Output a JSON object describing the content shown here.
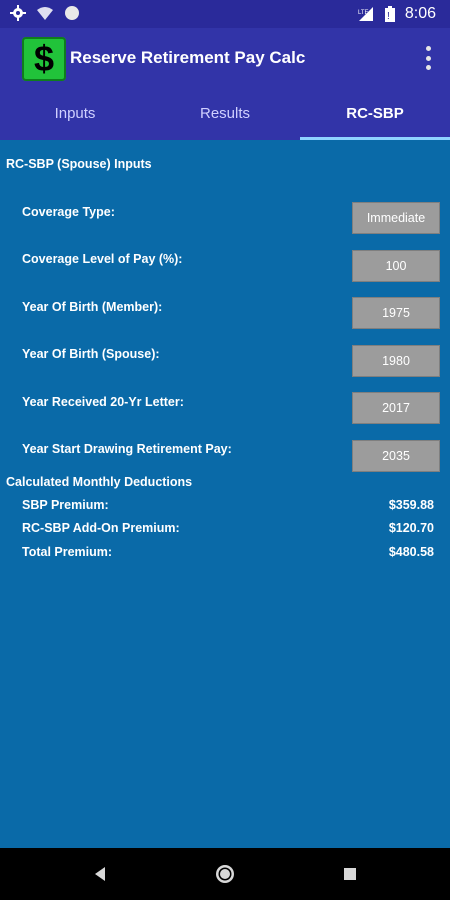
{
  "status": {
    "time": "8:06",
    "network": "LTE"
  },
  "app": {
    "title": "Reserve Retirement Pay Calc",
    "logo_symbol": "$"
  },
  "tabs": [
    {
      "label": "Inputs"
    },
    {
      "label": "Results"
    },
    {
      "label": "RC-SBP",
      "active": true
    }
  ],
  "inputs_section": {
    "title": "RC-SBP (Spouse) Inputs",
    "rows": [
      {
        "label": "Coverage Type:",
        "value": "Immediate"
      },
      {
        "label": "Coverage Level of Pay (%):",
        "value": "100"
      },
      {
        "label": "Year Of Birth (Member):",
        "value": "1975"
      },
      {
        "label": "Year Of Birth (Spouse):",
        "value": "1980"
      },
      {
        "label": "Year Received 20-Yr Letter:",
        "value": "2017"
      },
      {
        "label": "Year Start Drawing Retirement Pay:",
        "value": "2035"
      }
    ]
  },
  "deductions_section": {
    "title": "Calculated Monthly Deductions",
    "rows": [
      {
        "label": "SBP Premium:",
        "value": "$359.88"
      },
      {
        "label": "RC-SBP Add-On Premium:",
        "value": "$120.70"
      },
      {
        "label": "Total Premium:",
        "value": "$480.58"
      }
    ]
  },
  "colors": {
    "accent": "#3234a8",
    "background": "#0a6aa8",
    "field": "#9c9c9c",
    "logo": "#21c33a"
  },
  "icons": [
    "settings-icon",
    "wifi-icon",
    "sync-icon",
    "lte-icon",
    "battery-icon",
    "back-icon",
    "home-icon",
    "recents-icon",
    "overflow-menu-icon"
  ]
}
